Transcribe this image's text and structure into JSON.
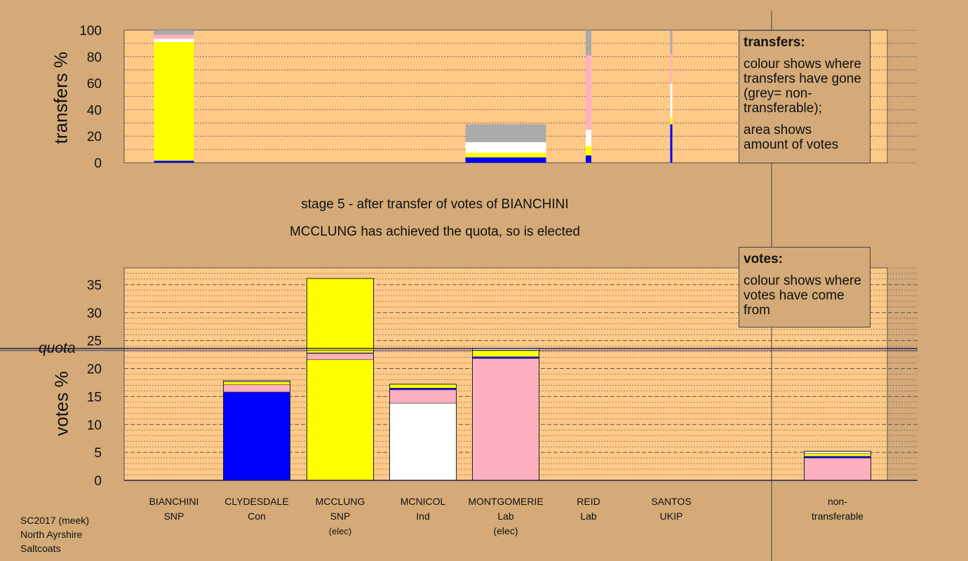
{
  "colors": {
    "background": "#d4aa78",
    "plot_bg": "#ffc988",
    "Con": "#0000ff",
    "SNP": "#ffff00",
    "Ind": "#ffffff",
    "Lab": "#ffb0c0",
    "nontransferable": "#aaaaaa",
    "quota_line": "#222255"
  },
  "titles": {
    "stage": "stage 5 - after transfer of votes of BIANCHINI",
    "elected": "MCCLUNG has achieved the quota, so is elected"
  },
  "legend_transfers": {
    "heading": "transfers:",
    "line1": "colour shows where transfers have gone (grey= non-transferable);",
    "line2": "area shows amount of votes"
  },
  "legend_votes": {
    "heading": "votes:",
    "line1": "colour shows where votes have come from"
  },
  "quota_label": "quota",
  "footer": [
    "SC2017 (meek)",
    "North Ayrshire",
    "Saltcoats"
  ],
  "candidates": [
    {
      "name": "BIANCHINI",
      "party": "SNP",
      "status": ""
    },
    {
      "name": "CLYDESDALE",
      "party": "Con",
      "status": ""
    },
    {
      "name": "MCCLUNG",
      "party": "SNP",
      "status": "(elec)"
    },
    {
      "name": "MCNICOL",
      "party": "Ind",
      "status": ""
    },
    {
      "name": "MONTGOMERIE",
      "party": "Lab",
      "status": "(elec)"
    },
    {
      "name": "REID",
      "party": "Lab",
      "status": ""
    },
    {
      "name": "SANTOS",
      "party": "UKIP",
      "status": ""
    },
    {
      "name": "non-\ntransferable",
      "party": "",
      "status": ""
    }
  ],
  "chart_data": [
    {
      "type": "bar",
      "ylabel": "transfers %",
      "ylim": [
        0,
        100
      ],
      "yticks": [
        0,
        20,
        40,
        60,
        80,
        100
      ],
      "categories": [
        "BIANCHINI",
        "CLYDESDALE",
        "MCCLUNG",
        "MCNICOL",
        "MONTGOMERIE",
        "REID",
        "SANTOS"
      ],
      "note": "stacked transfer bars; bar width proportional to amount of votes",
      "bars": [
        {
          "candidate": "BIANCHINI",
          "width_rel": 1.0,
          "segments": [
            {
              "to": "Con",
              "value": 1.5
            },
            {
              "to": "SNP",
              "value": 89.5
            },
            {
              "to": "Ind",
              "value": 2.5
            },
            {
              "to": "Lab",
              "value": 3.0
            },
            {
              "to": "nontransferable",
              "value": 3.5
            }
          ]
        },
        {
          "candidate": "MONTGOMERIE",
          "width_rel": 1.0,
          "segments": [
            {
              "to": "Con",
              "value": 4.0
            },
            {
              "to": "SNP",
              "value": 3.5
            },
            {
              "to": "Ind",
              "value": 8.0
            },
            {
              "to": "nontransferable",
              "value": 13.5
            }
          ]
        },
        {
          "candidate": "REID",
          "width_rel": 0.08,
          "segments": [
            {
              "to": "Con",
              "value": 5.5
            },
            {
              "to": "SNP",
              "value": 7.0
            },
            {
              "to": "Ind",
              "value": 12.5
            },
            {
              "to": "Lab",
              "value": 56.0
            },
            {
              "to": "nontransferable",
              "value": 19.0
            }
          ]
        },
        {
          "candidate": "SANTOS",
          "width_rel": 0.03,
          "segments": [
            {
              "to": "Con",
              "value": 29.0
            },
            {
              "to": "SNP",
              "value": 5.0
            },
            {
              "to": "Ind",
              "value": 26.0
            },
            {
              "to": "Lab",
              "value": 22.0
            },
            {
              "to": "nontransferable",
              "value": 18.0
            }
          ]
        }
      ]
    },
    {
      "type": "bar",
      "ylabel": "votes %",
      "ylim": [
        0,
        38
      ],
      "yticks": [
        0,
        5,
        10,
        15,
        20,
        25,
        30,
        35
      ],
      "quota": 23.6,
      "categories": [
        "BIANCHINI",
        "CLYDESDALE",
        "MCCLUNG",
        "MCNICOL",
        "MONTGOMERIE",
        "REID",
        "SANTOS",
        "non-transferable"
      ],
      "stacked_segments": [
        [],
        [
          {
            "from": "Con",
            "value": 15.8
          },
          {
            "from": "Lab",
            "value": 1.3
          },
          {
            "from": "SNP",
            "value": 0.5
          },
          {
            "from": "Ind",
            "value": 0.2
          }
        ],
        [
          {
            "from": "SNP",
            "value": 21.6
          },
          {
            "from": "Lab",
            "value": 1.1
          },
          {
            "from": "Con",
            "value": 0.1
          },
          {
            "from": "SNP",
            "value": 13.3
          }
        ],
        [
          {
            "from": "Ind",
            "value": 13.8
          },
          {
            "from": "Lab",
            "value": 2.4
          },
          {
            "from": "Con",
            "value": 0.3
          },
          {
            "from": "SNP",
            "value": 0.7
          }
        ],
        [
          {
            "from": "Lab",
            "value": 21.8
          },
          {
            "from": "Con",
            "value": 0.3
          },
          {
            "from": "SNP",
            "value": 1.2
          },
          {
            "from": "Ind",
            "value": 0.3
          }
        ],
        [],
        [],
        [
          {
            "from": "Lab",
            "value": 4.0
          },
          {
            "from": "Con",
            "value": 0.3
          },
          {
            "from": "SNP",
            "value": 0.5
          },
          {
            "from": "Ind",
            "value": 0.4
          }
        ]
      ],
      "totals": [
        0,
        17.8,
        36.1,
        17.2,
        23.6,
        0,
        0,
        5.2
      ]
    }
  ]
}
